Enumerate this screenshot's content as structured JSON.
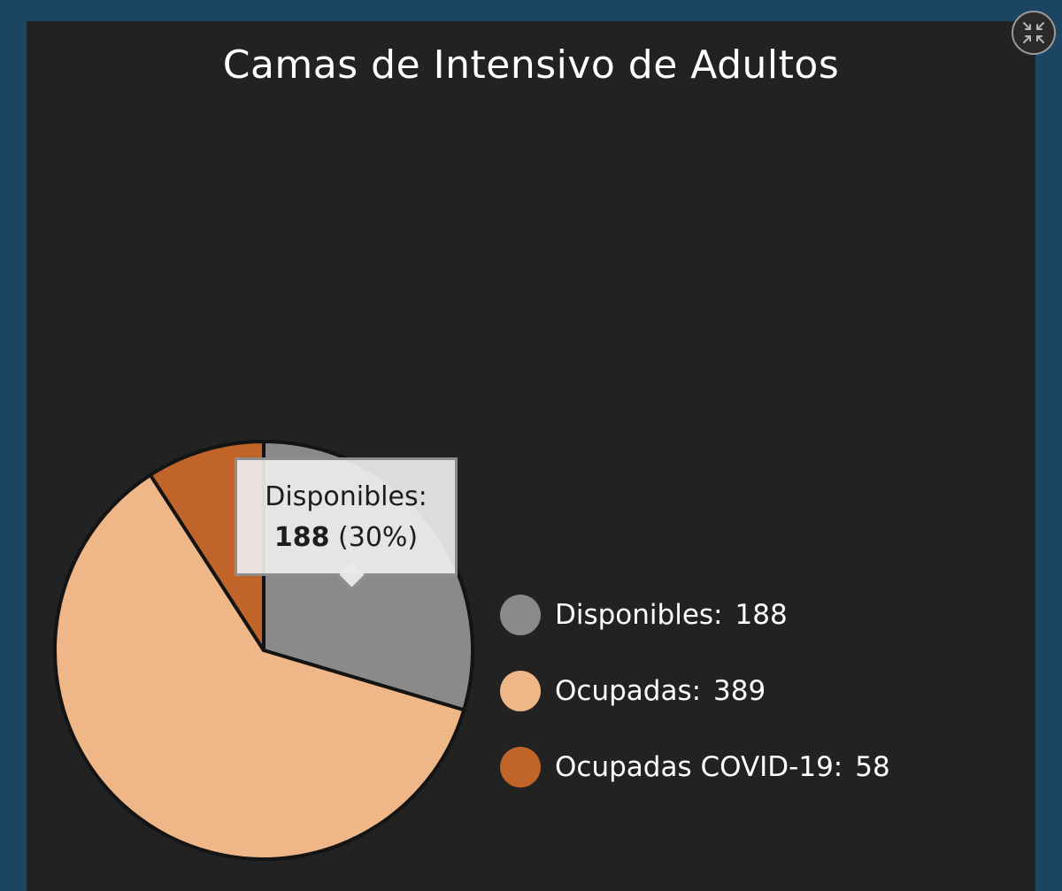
{
  "chart_data": {
    "type": "pie",
    "title": "Camas de Intensivo de Adultos",
    "slices": [
      {
        "name": "Disponibles",
        "value": 188,
        "color": "#8a8a8a"
      },
      {
        "name": "Ocupadas",
        "value": 389,
        "color": "#efb688"
      },
      {
        "name": "Ocupadas COVID-19",
        "value": 58,
        "color": "#c0642a"
      }
    ],
    "legend_placement": "right",
    "tooltip": {
      "label": "Disponibles:",
      "value": "188",
      "percent": "(30%)"
    }
  },
  "legend": [
    {
      "label": "Disponibles:",
      "value": "188",
      "color": "#8a8a8a"
    },
    {
      "label": "Ocupadas:",
      "value": "389",
      "color": "#efb688"
    },
    {
      "label": "Ocupadas COVID-19:",
      "value": "58",
      "color": "#c0642a"
    }
  ],
  "controls": {
    "minimize_icon": "minimize-icon"
  }
}
